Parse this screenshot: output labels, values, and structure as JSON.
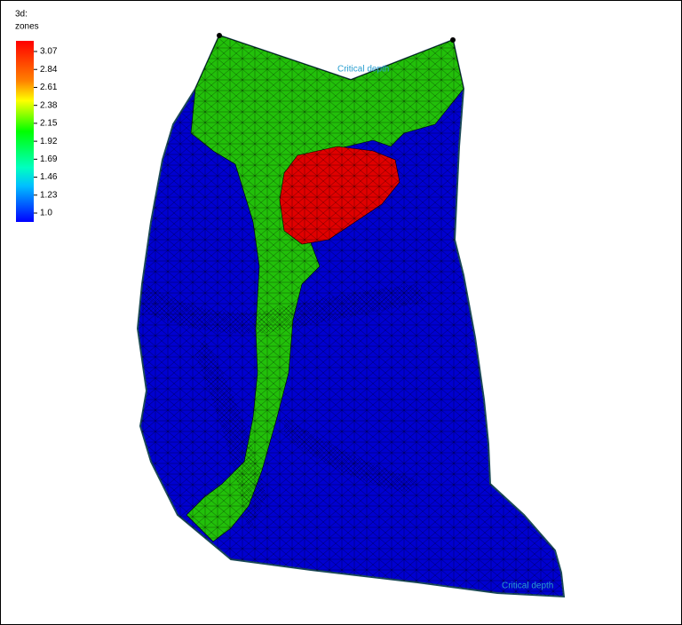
{
  "legend": {
    "title": [
      "3d:",
      "zones"
    ],
    "ticks": [
      "3.07",
      "2.84",
      "2.61",
      "2.38",
      "2.15",
      "1.92",
      "1.69",
      "1.46",
      "1.23",
      "1.0"
    ]
  },
  "annotations": [
    "Critical depth",
    "Critical depth"
  ]
}
